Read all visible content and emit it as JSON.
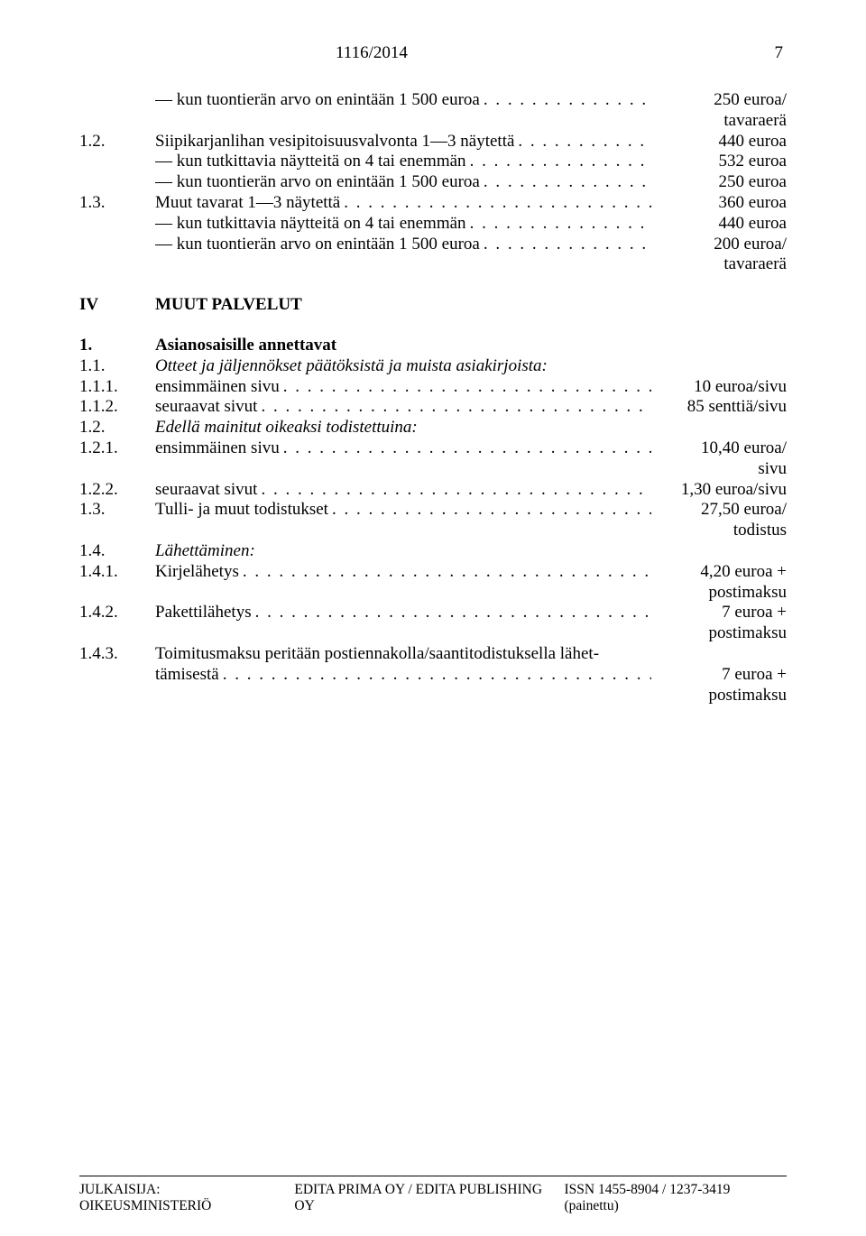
{
  "header": {
    "title": "1116/2014",
    "pageNumber": "7"
  },
  "block1": [
    {
      "num": "",
      "label": "— kun tuontierän arvo on enintään 1 500 euroa",
      "value": "250 euroa/",
      "valueSub": "tavaraerä"
    },
    {
      "num": "1.2.",
      "label": "Siipikarjanlihan vesipitoisuusvalvonta 1—3 näytettä",
      "value": "440 euroa"
    },
    {
      "num": "",
      "label": "— kun tutkittavia näytteitä on 4 tai enemmän",
      "value": "532 euroa"
    },
    {
      "num": "",
      "label": "— kun tuontierän arvo on enintään 1 500 euroa",
      "value": "250 euroa"
    },
    {
      "num": "1.3.",
      "label": "Muut tavarat 1—3 näytettä",
      "value": "360 euroa"
    },
    {
      "num": "",
      "label": "— kun tutkittavia näytteitä on 4 tai enemmän",
      "value": "440 euroa"
    },
    {
      "num": "",
      "label": "— kun tuontierän arvo on enintään 1 500 euroa",
      "value": "200 euroa/",
      "valueSub": "tavaraerä"
    }
  ],
  "sectionIV": {
    "num": "IV",
    "label": "MUUT PALVELUT"
  },
  "block2Header": {
    "num": "1.",
    "label": "Asianosaisille annettavat"
  },
  "block2": [
    {
      "num": "1.1.",
      "label": "Otteet ja jäljennökset päätöksistä ja muista asiakirjoista:",
      "italic": true,
      "noDots": true
    },
    {
      "num": "1.1.1.",
      "label": "ensimmäinen sivu",
      "value": "10 euroa/sivu"
    },
    {
      "num": "1.1.2.",
      "label": "seuraavat sivut",
      "value": "85 senttiä/sivu"
    },
    {
      "num": "1.2.",
      "label": "Edellä mainitut oikeaksi todistettuina:",
      "italic": true,
      "noDots": true
    },
    {
      "num": "1.2.1.",
      "label": "ensimmäinen sivu",
      "value": "10,40 euroa/",
      "valueSub": "sivu"
    },
    {
      "num": "1.2.2.",
      "label": "seuraavat sivut",
      "value": "1,30 euroa/sivu"
    },
    {
      "num": "1.3.",
      "label": "Tulli- ja muut todistukset",
      "value": "27,50 euroa/",
      "valueSub": "todistus"
    },
    {
      "num": "1.4.",
      "label": "Lähettäminen:",
      "italic": true,
      "noDots": true
    },
    {
      "num": "1.4.1.",
      "label": "Kirjelähetys",
      "value": "4,20 euroa +",
      "valueSub": "postimaksu"
    },
    {
      "num": "1.4.2.",
      "label": "Pakettilähetys",
      "value": "7 euroa +",
      "valueSub": "postimaksu"
    }
  ],
  "block2Wrap": {
    "num": "1.4.3.",
    "labelLine1": "Toimitusmaksu peritään postiennakolla/saantitodistuksella lähet-",
    "labelLine2": "tämisestä",
    "value": "7 euroa +",
    "valueSub": "postimaksu"
  },
  "footer": {
    "left": "JULKAISIJA: OIKEUSMINISTERIÖ",
    "center": "EDITA PRIMA OY / EDITA PUBLISHING OY",
    "right": "ISSN 1455-8904 / 1237-3419 (painettu)"
  }
}
